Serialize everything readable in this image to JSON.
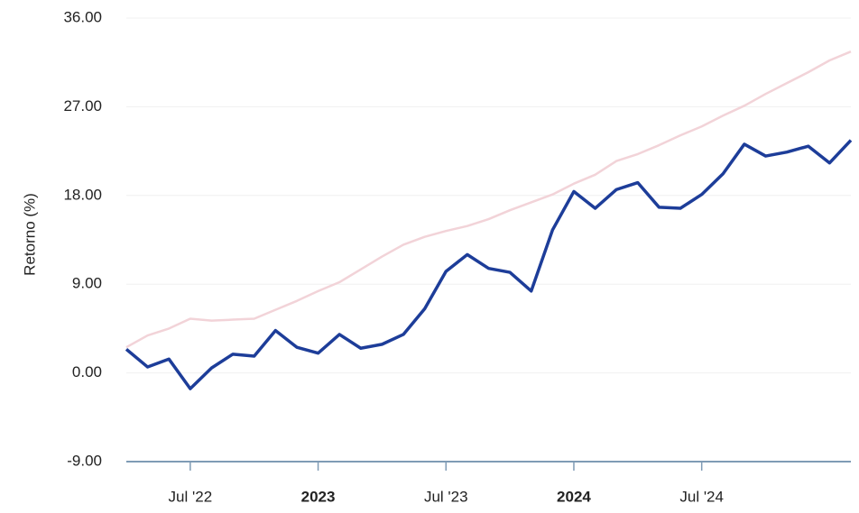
{
  "chart_data": {
    "type": "line",
    "y_label": "Retorno (%)",
    "categories": [
      null,
      null,
      null,
      "Jul '22",
      null,
      null,
      null,
      null,
      null,
      "2023",
      null,
      null,
      null,
      null,
      null,
      "Jul '23",
      null,
      null,
      null,
      null,
      null,
      "2024",
      null,
      null,
      null,
      null,
      null,
      "Jul '24",
      null,
      null,
      null,
      null,
      null,
      null,
      null
    ],
    "series": [
      {
        "color": "#f2d3d8",
        "values": [
          2.6,
          3.8,
          4.5,
          5.5,
          5.3,
          5.4,
          5.5,
          6.4,
          7.3,
          8.3,
          9.2,
          10.5,
          11.8,
          13.0,
          13.8,
          14.4,
          14.9,
          15.6,
          16.5,
          17.3,
          18.1,
          19.2,
          20.1,
          21.5,
          22.2,
          23.1,
          24.1,
          25.0,
          26.1,
          27.1,
          28.3,
          29.4,
          30.5,
          31.7,
          32.6
        ]
      },
      {
        "color": "#1d3d99",
        "values": [
          2.4,
          0.6,
          1.4,
          -1.6,
          0.5,
          1.9,
          1.7,
          4.3,
          2.6,
          2.0,
          3.9,
          2.5,
          2.9,
          3.9,
          6.5,
          10.3,
          12.0,
          10.6,
          10.2,
          8.3,
          14.5,
          18.4,
          16.7,
          18.6,
          19.3,
          16.8,
          16.7,
          18.1,
          20.2,
          23.2,
          22.0,
          22.4,
          23.0,
          21.3,
          23.6
        ]
      }
    ],
    "ylim": [
      -9,
      36
    ],
    "yticks": [
      {
        "value": -9,
        "label": "-9.00"
      },
      {
        "value": 0,
        "label": "0.00"
      },
      {
        "value": 9,
        "label": "9.00"
      },
      {
        "value": 18,
        "label": "18.00"
      },
      {
        "value": 27,
        "label": "27.00"
      },
      {
        "value": 36,
        "label": "36.00"
      }
    ],
    "grid": true
  }
}
